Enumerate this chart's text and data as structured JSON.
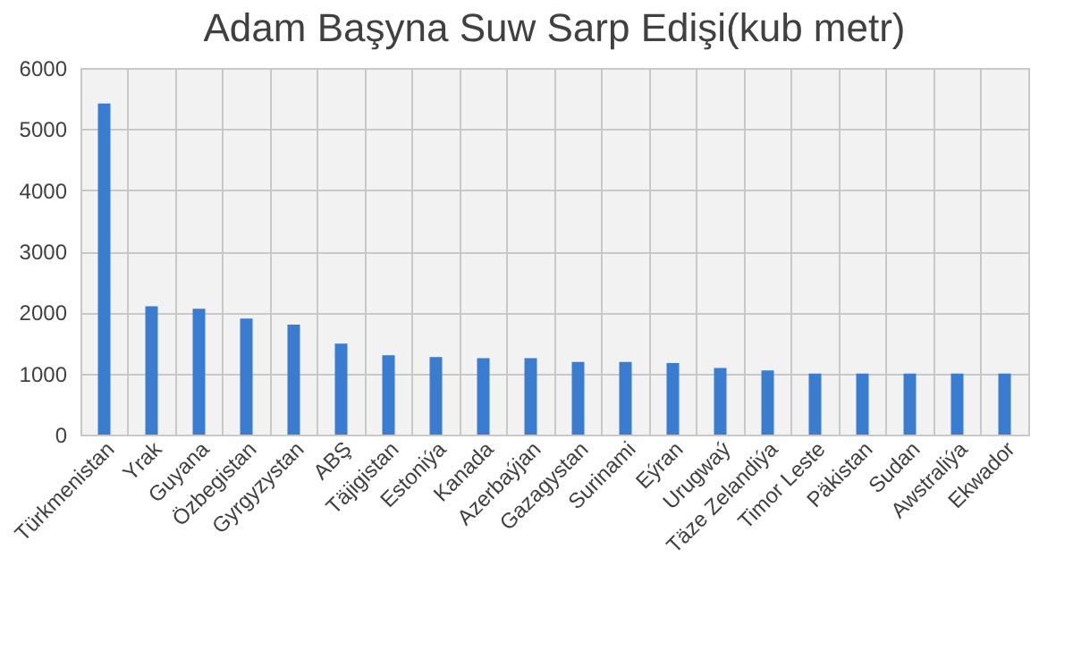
{
  "chart_data": {
    "type": "bar",
    "title": "Adam Başyna Suw Sarp Edişi(kub metr)",
    "categories": [
      "Türkmenistan",
      "Yrak",
      "Guyana",
      "Özbegistan",
      "Gyrgyzystan",
      "ABŞ",
      "Täjigistan",
      "Estoniýa",
      "Kanada",
      "Azerbaýjan",
      "Gazagystan",
      "Surinami",
      "Eýran",
      "Urugwaý",
      "Täze Zelandiýa",
      "Timor Leste",
      "Päkistan",
      "Sudan",
      "Awstraliýa",
      "Ekwador"
    ],
    "values": [
      5420,
      2100,
      2060,
      1900,
      1800,
      1490,
      1300,
      1270,
      1250,
      1250,
      1190,
      1190,
      1170,
      1090,
      1050,
      1000,
      1000,
      1000,
      1000,
      1000
    ],
    "color": "#3a7dd0",
    "ylim": [
      0,
      6000
    ],
    "yticks": [
      0,
      1000,
      2000,
      3000,
      4000,
      5000,
      6000
    ],
    "grid": true
  }
}
